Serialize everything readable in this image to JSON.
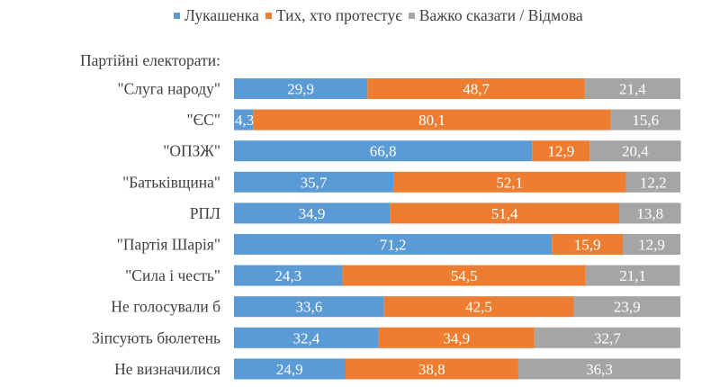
{
  "chart_data": {
    "type": "bar",
    "orientation": "horizontal",
    "stacked": true,
    "normalized": true,
    "title": "",
    "group_title": "Партійні електорати:",
    "xlabel": "",
    "ylabel": "",
    "xlim": [
      0,
      100
    ],
    "grid": false,
    "legend_position": "top",
    "categories": [
      "\"Слуга народу\"",
      "\"ЄС\"",
      "\"ОПЗЖ\"",
      "\"Батьківщина\"",
      "РПЛ",
      "\"Партія Шарія\"",
      "\"Сила і честь\"",
      "Не голосували б",
      "Зіпсують бюлетень",
      "Не визначилися"
    ],
    "series": [
      {
        "name": "Лукашенка",
        "color": "#5B9BD5",
        "values": [
          29.9,
          4.3,
          66.8,
          35.7,
          34.9,
          71.2,
          24.3,
          33.6,
          32.4,
          24.9
        ],
        "labels": [
          "29,9",
          "4,3",
          "66,8",
          "35,7",
          "34,9",
          "71,2",
          "24,3",
          "33,6",
          "32,4",
          "24,9"
        ]
      },
      {
        "name": "Тих, хто протестує",
        "color": "#ED7D31",
        "values": [
          48.7,
          80.1,
          12.9,
          52.1,
          51.4,
          15.9,
          54.5,
          42.5,
          34.9,
          38.8
        ],
        "labels": [
          "48,7",
          "80,1",
          "12,9",
          "52,1",
          "51,4",
          "15,9",
          "54,5",
          "42,5",
          "34,9",
          "38,8"
        ]
      },
      {
        "name": "Важко сказати / Відмова",
        "color": "#A5A5A5",
        "values": [
          21.4,
          15.6,
          20.4,
          12.2,
          13.8,
          12.9,
          21.1,
          23.9,
          32.7,
          36.3
        ],
        "labels": [
          "21,4",
          "15,6",
          "20,4",
          "12,2",
          "13,8",
          "12,9",
          "21,1",
          "23,9",
          "32,7",
          "36,3"
        ]
      }
    ]
  }
}
